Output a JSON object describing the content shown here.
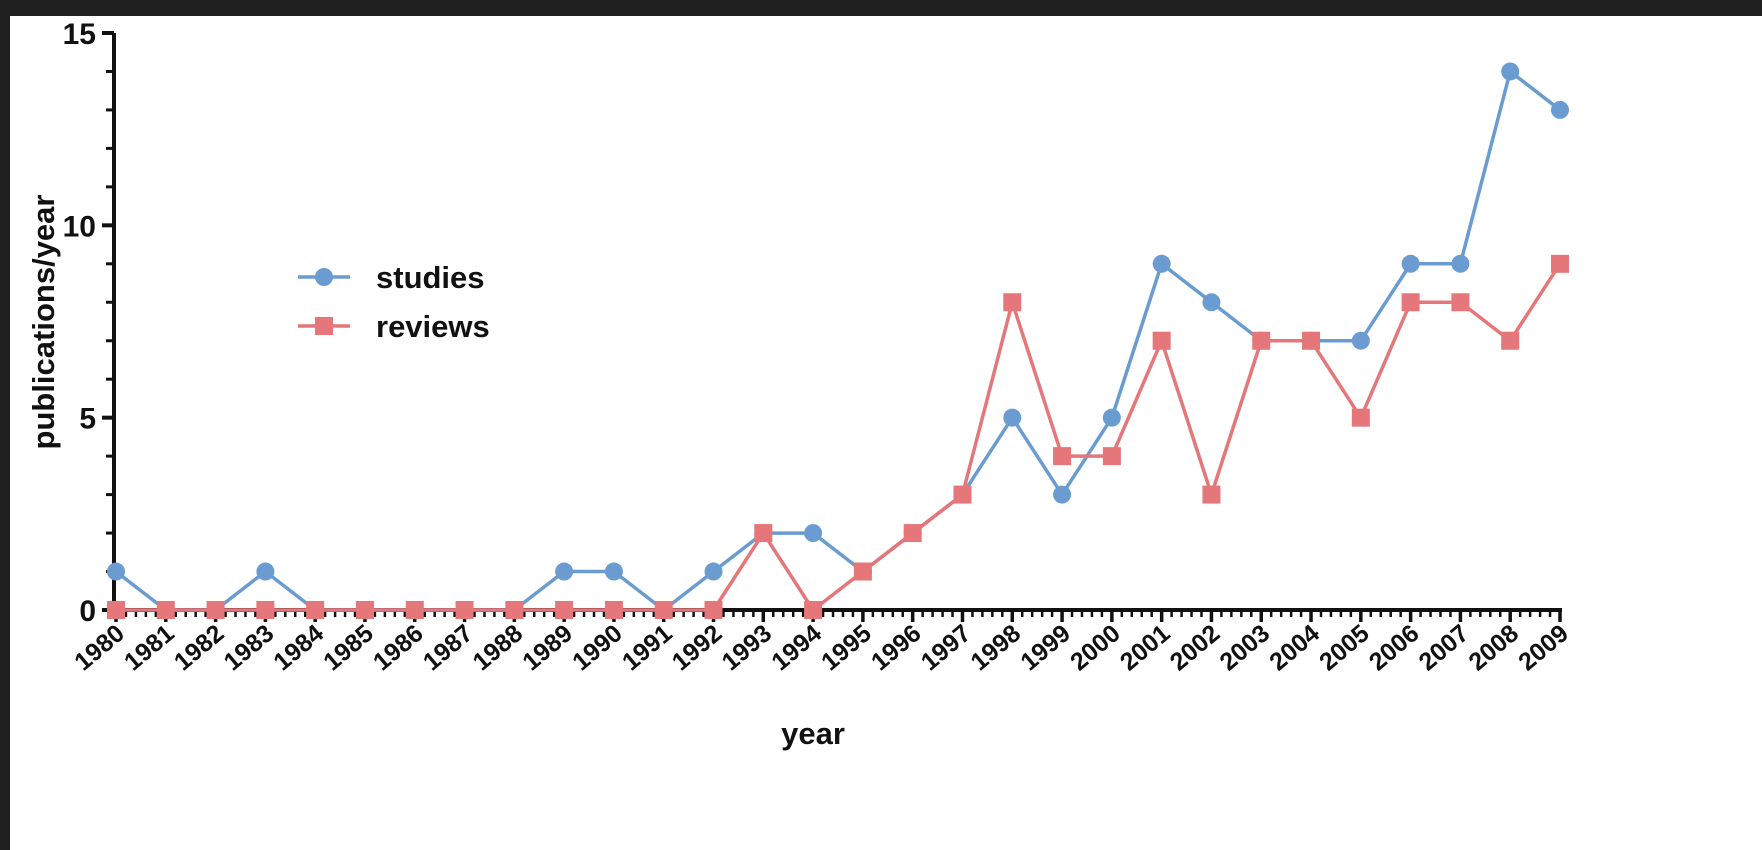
{
  "chart_data": {
    "type": "line",
    "xlabel": "year",
    "ylabel": "publications/year",
    "ylim": [
      0,
      15
    ],
    "yticks": [
      0,
      5,
      10,
      15
    ],
    "grid": false,
    "legend_position": "upper-left",
    "categories": [
      "1980",
      "1981",
      "1982",
      "1983",
      "1984",
      "1985",
      "1986",
      "1987",
      "1988",
      "1989",
      "1990",
      "1991",
      "1992",
      "1993",
      "1994",
      "1995",
      "1996",
      "1997",
      "1998",
      "1999",
      "2000",
      "2001",
      "2002",
      "2003",
      "2004",
      "2005",
      "2006",
      "2007",
      "2008",
      "2009"
    ],
    "series": [
      {
        "name": "studies",
        "color": "#6a9bd1",
        "marker": "circle",
        "values": [
          1,
          0,
          0,
          1,
          0,
          0,
          0,
          0,
          0,
          1,
          1,
          0,
          1,
          2,
          2,
          1,
          2,
          3,
          5,
          3,
          5,
          9,
          8,
          7,
          7,
          7,
          9,
          9,
          14,
          13
        ]
      },
      {
        "name": "reviews",
        "color": "#e5767a",
        "marker": "square",
        "values": [
          0,
          0,
          0,
          0,
          0,
          0,
          0,
          0,
          0,
          0,
          0,
          0,
          0,
          2,
          0,
          1,
          2,
          3,
          8,
          4,
          4,
          7,
          3,
          7,
          7,
          5,
          8,
          8,
          7,
          9
        ]
      }
    ]
  }
}
